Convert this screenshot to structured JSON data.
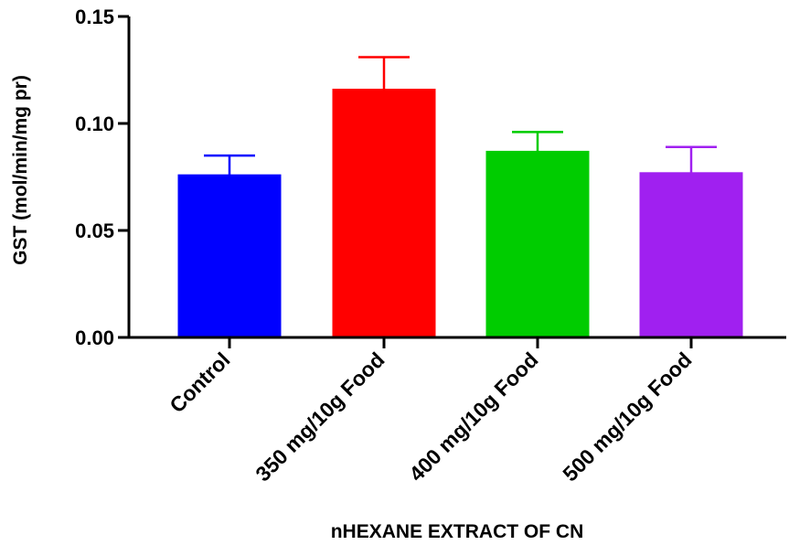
{
  "chart_data": {
    "type": "bar",
    "categories": [
      "Control",
      "350 mg/10g Food",
      "400 mg/10g Food",
      "500 mg/10g Food"
    ],
    "values": [
      0.076,
      0.116,
      0.087,
      0.077
    ],
    "errors": [
      0.009,
      0.015,
      0.009,
      0.012
    ],
    "colors": [
      "#0000ff",
      "#ff0000",
      "#00cc00",
      "#a020f0"
    ],
    "title": "",
    "xlabel": "nHEXANE EXTRACT OF CN",
    "ylabel": "GST (mol/min/mg pr)",
    "ylim": [
      0,
      0.15
    ],
    "yticks": [
      "0.00",
      "0.05",
      "0.10",
      "0.15"
    ],
    "ytick_values": [
      0,
      0.05,
      0.1,
      0.15
    ],
    "grid": false
  }
}
